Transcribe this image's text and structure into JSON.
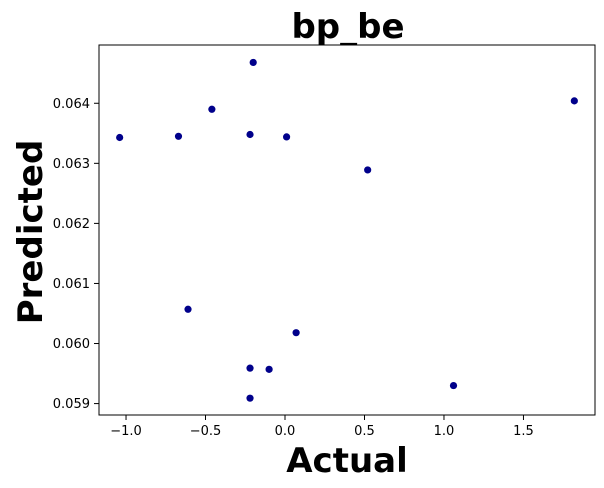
{
  "chart_data": {
    "type": "scatter",
    "title": "bp_be",
    "xlabel": "Actual",
    "ylabel": "Predicted",
    "xlim": [
      -1.17,
      1.95
    ],
    "ylim": [
      0.05881,
      0.06497
    ],
    "x_ticks": [
      -1.0,
      -0.5,
      0.0,
      0.5,
      1.0,
      1.5
    ],
    "x_tick_labels": [
      "−1.0",
      "−0.5",
      "0.0",
      "0.5",
      "1.0",
      "1.5"
    ],
    "y_ticks": [
      0.059,
      0.06,
      0.061,
      0.062,
      0.063,
      0.064
    ],
    "y_tick_labels": [
      "0.059",
      "0.060",
      "0.061",
      "0.062",
      "0.063",
      "0.064"
    ],
    "grid": false,
    "legend": "none",
    "marker_color": "#00008b",
    "points": [
      {
        "x": -1.04,
        "y": 0.06343
      },
      {
        "x": -0.67,
        "y": 0.06345
      },
      {
        "x": -0.61,
        "y": 0.06057
      },
      {
        "x": -0.46,
        "y": 0.0639
      },
      {
        "x": -0.2,
        "y": 0.06468
      },
      {
        "x": -0.22,
        "y": 0.06348
      },
      {
        "x": -0.22,
        "y": 0.05959
      },
      {
        "x": -0.22,
        "y": 0.05909
      },
      {
        "x": -0.1,
        "y": 0.05957
      },
      {
        "x": 0.01,
        "y": 0.06344
      },
      {
        "x": 0.07,
        "y": 0.06018
      },
      {
        "x": 0.52,
        "y": 0.06289
      },
      {
        "x": 1.06,
        "y": 0.0593
      },
      {
        "x": 1.82,
        "y": 0.06404
      }
    ]
  }
}
